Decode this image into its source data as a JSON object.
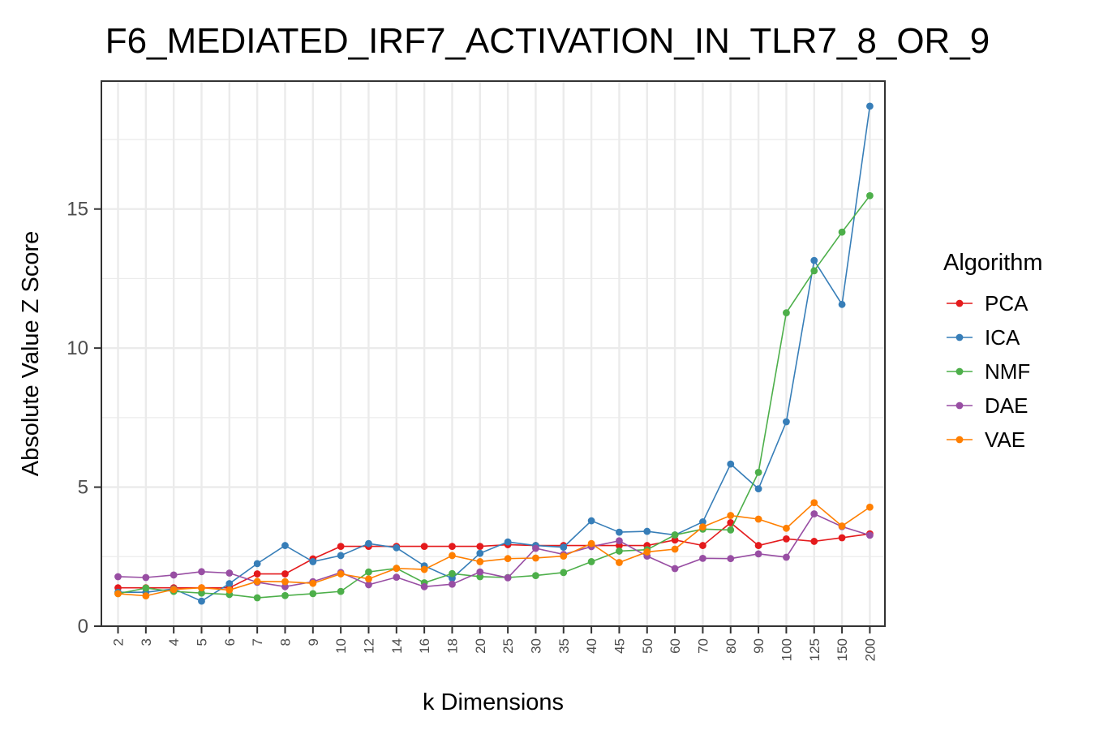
{
  "chart_data": {
    "type": "line",
    "title": "F6_MEDIATED_IRF7_ACTIVATION_IN_TLR7_8_OR_9",
    "xlabel": "k Dimensions",
    "ylabel": "Absolute Value Z Score",
    "categories": [
      "2",
      "3",
      "4",
      "5",
      "6",
      "7",
      "8",
      "9",
      "10",
      "12",
      "14",
      "16",
      "18",
      "20",
      "25",
      "30",
      "35",
      "40",
      "45",
      "50",
      "60",
      "70",
      "80",
      "90",
      "100",
      "125",
      "150",
      "200"
    ],
    "yticks": [
      0,
      5,
      10,
      15
    ],
    "ytick_labels": [
      "0",
      "5",
      "10",
      "15"
    ],
    "ylim": [
      0,
      19.6
    ],
    "grid": true,
    "legend_title": "Algorithm",
    "legend_position": "right",
    "series": [
      {
        "name": "PCA",
        "color": "#e41a1c",
        "values": [
          1.38,
          1.38,
          1.38,
          1.38,
          1.38,
          1.88,
          1.88,
          2.42,
          2.87,
          2.87,
          2.87,
          2.87,
          2.87,
          2.87,
          2.93,
          2.9,
          2.9,
          2.9,
          2.9,
          2.9,
          3.1,
          2.9,
          3.72,
          2.9,
          3.14,
          3.05,
          3.18,
          3.32
        ]
      },
      {
        "name": "ICA",
        "color": "#377eb8",
        "values": [
          1.22,
          1.22,
          1.34,
          0.9,
          1.53,
          2.25,
          2.9,
          2.32,
          2.54,
          2.97,
          2.82,
          2.17,
          1.72,
          2.62,
          3.03,
          2.9,
          2.84,
          3.79,
          3.38,
          3.41,
          3.28,
          3.75,
          5.83,
          4.94,
          7.35,
          13.15,
          11.57,
          18.7
        ]
      },
      {
        "name": "NMF",
        "color": "#4daf4a",
        "values": [
          1.17,
          1.37,
          1.25,
          1.19,
          1.14,
          1.02,
          1.1,
          1.17,
          1.25,
          1.95,
          2.08,
          1.56,
          1.89,
          1.78,
          1.75,
          1.82,
          1.93,
          2.32,
          2.7,
          2.75,
          3.28,
          3.49,
          3.46,
          5.53,
          11.27,
          12.78,
          14.17,
          15.48
        ]
      },
      {
        "name": "DAE",
        "color": "#984ea3",
        "values": [
          1.78,
          1.75,
          1.84,
          1.96,
          1.91,
          1.58,
          1.42,
          1.6,
          1.93,
          1.49,
          1.76,
          1.42,
          1.51,
          1.95,
          1.74,
          2.8,
          2.58,
          2.86,
          3.07,
          2.52,
          2.07,
          2.44,
          2.43,
          2.6,
          2.48,
          4.04,
          3.58,
          3.27
        ]
      },
      {
        "name": "VAE",
        "color": "#ff7f00",
        "values": [
          1.17,
          1.09,
          1.32,
          1.38,
          1.3,
          1.61,
          1.6,
          1.54,
          1.88,
          1.7,
          2.08,
          2.04,
          2.54,
          2.32,
          2.43,
          2.45,
          2.52,
          2.97,
          2.29,
          2.67,
          2.77,
          3.57,
          3.98,
          3.85,
          3.52,
          4.44,
          3.6,
          4.28
        ]
      }
    ]
  }
}
